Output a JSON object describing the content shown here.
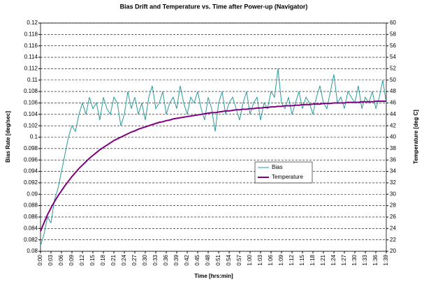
{
  "chart_data": {
    "type": "line",
    "title": "Bias Drift and Temperature vs. Time after Power-up (Navigator)",
    "x_label": "Time [hrs:min]",
    "y_label": "Bias Rate [deg/sec]",
    "y2_label": "Temperature [deg C]",
    "categories": [
      "0:00",
      null,
      null,
      "0:03",
      null,
      null,
      "0:06",
      null,
      null,
      "0:09",
      null,
      null,
      "0:12",
      null,
      null,
      "0:15",
      null,
      null,
      "0:18",
      null,
      null,
      "0:21",
      null,
      null,
      "0:24",
      null,
      null,
      "0:27",
      null,
      null,
      "0:30",
      null,
      null,
      "0:33",
      null,
      null,
      "0:36",
      null,
      null,
      "0:39",
      null,
      null,
      "0:42",
      null,
      null,
      "0:45",
      null,
      null,
      "0:48",
      null,
      null,
      "0:51",
      null,
      null,
      "0:54",
      null,
      null,
      "0:57",
      null,
      null,
      "1:00",
      null,
      null,
      "1:03",
      null,
      null,
      "1:06",
      null,
      null,
      "1:09",
      null,
      null,
      "1:12",
      null,
      null,
      "1:15",
      null,
      null,
      "1:18",
      null,
      null,
      "1:21",
      null,
      null,
      "1:24",
      null,
      null,
      "1:27",
      null,
      null,
      "1:30",
      null,
      null,
      "1:33",
      null,
      null,
      "1:36",
      null,
      null,
      "1:39"
    ],
    "series": [
      {
        "name": "Bias",
        "color": "#2a9a9a",
        "values": [
          0.081,
          0.083,
          0.086,
          0.085,
          0.089,
          0.091,
          0.094,
          0.097,
          0.1,
          0.102,
          0.101,
          0.104,
          0.106,
          0.104,
          0.107,
          0.105,
          0.106,
          0.103,
          0.107,
          0.105,
          0.104,
          0.107,
          0.106,
          0.102,
          0.104,
          0.108,
          0.105,
          0.107,
          0.104,
          0.106,
          0.103,
          0.107,
          0.109,
          0.105,
          0.106,
          0.108,
          0.104,
          0.106,
          0.107,
          0.105,
          0.109,
          0.106,
          0.104,
          0.107,
          0.106,
          0.108,
          0.105,
          0.103,
          0.107,
          0.105,
          0.101,
          0.106,
          0.108,
          0.104,
          0.106,
          0.107,
          0.105,
          0.103,
          0.106,
          0.108,
          0.104,
          0.106,
          0.107,
          0.103,
          0.106,
          0.105,
          0.108,
          0.107,
          0.112,
          0.106,
          0.105,
          0.107,
          0.104,
          0.106,
          0.108,
          0.105,
          0.107,
          0.106,
          0.104,
          0.107,
          0.109,
          0.106,
          0.105,
          0.108,
          0.111,
          0.106,
          0.107,
          0.105,
          0.108,
          0.107,
          0.106,
          0.109,
          0.105,
          0.107,
          0.106,
          0.108,
          0.105,
          0.107,
          0.11,
          0.106
        ]
      },
      {
        "name": "Temperature",
        "color": "#800080",
        "axis": "y2",
        "values": [
          23.5,
          25,
          26.4,
          27.6,
          28.7,
          29.7,
          30.6,
          31.5,
          32.3,
          33.1,
          33.8,
          34.5,
          35.1,
          35.7,
          36.3,
          36.8,
          37.3,
          37.8,
          38.2,
          38.6,
          39,
          39.4,
          39.7,
          40,
          40.3,
          40.6,
          40.9,
          41.1,
          41.4,
          41.6,
          41.8,
          42,
          42.2,
          42.4,
          42.6,
          42.7,
          42.9,
          43,
          43.2,
          43.3,
          43.4,
          43.5,
          43.6,
          43.7,
          43.8,
          43.9,
          44,
          44.1,
          44.2,
          44.3,
          44.3,
          44.4,
          44.5,
          44.6,
          44.6,
          44.7,
          44.8,
          44.8,
          44.9,
          44.9,
          45,
          45,
          45.1,
          45.1,
          45.2,
          45.2,
          45.3,
          45.3,
          45.4,
          45.4,
          45.5,
          45.5,
          45.5,
          45.6,
          45.6,
          45.7,
          45.7,
          45.7,
          45.8,
          45.8,
          45.8,
          45.9,
          45.9,
          45.9,
          46,
          46,
          46,
          46,
          46.1,
          46.1,
          46.1,
          46.1,
          46.2,
          46.2,
          46.2,
          46.2,
          46.3,
          46.3,
          46.3,
          46.3
        ]
      }
    ],
    "ylim": [
      0.08,
      0.12
    ],
    "yticks": [
      0.08,
      0.082,
      0.084,
      0.086,
      0.088,
      0.09,
      0.092,
      0.094,
      0.096,
      0.098,
      0.1,
      0.102,
      0.104,
      0.106,
      0.108,
      0.11,
      0.112,
      0.114,
      0.116,
      0.118,
      0.12
    ],
    "y2lim": [
      20,
      60
    ],
    "y2ticks": [
      20,
      22,
      24,
      26,
      28,
      30,
      32,
      34,
      36,
      38,
      40,
      42,
      44,
      46,
      48,
      50,
      52,
      54,
      56,
      58,
      60
    ],
    "grid": true,
    "legend": "center-right"
  }
}
